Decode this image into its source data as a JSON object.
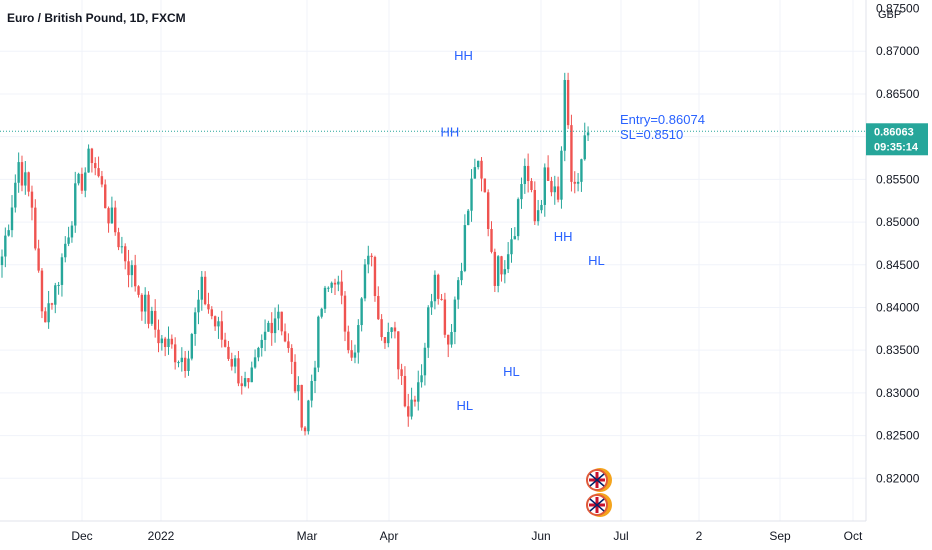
{
  "chart_data": {
    "type": "candlestick",
    "title": "Euro / British Pound, 1D, FXCM",
    "currency": "GBP",
    "colors": {
      "up": "#26a69a",
      "down": "#ef5350",
      "annotation": "#2962ff",
      "last_price": "#26a69a"
    },
    "ylim": [
      0.815,
      0.876
    ],
    "y_ticks": [
      0.82,
      0.825,
      0.83,
      0.835,
      0.84,
      0.845,
      0.85,
      0.855,
      0.86,
      0.865,
      0.87
    ],
    "y_tick_labels": [
      "0.82000",
      "0.82500",
      "0.83000",
      "0.83500",
      "0.84000",
      "0.84500",
      "0.85000",
      "0.85500",
      "0.86000",
      "0.86500",
      "0.87000"
    ],
    "partial_top_tick": "0.87500",
    "x_tick_labels": [
      "Dec",
      "2022",
      "Mar",
      "Apr",
      "Jun",
      "Jul",
      "2",
      "Sep",
      "Oct"
    ],
    "last_price": {
      "value": 0.86063,
      "label": "0.86063",
      "countdown": "09:35:14"
    },
    "candles": {
      "anchors": [
        [
          0,
          0.846
        ],
        [
          5,
          0.857
        ],
        [
          9,
          0.852
        ],
        [
          12,
          0.839
        ],
        [
          16,
          0.842
        ],
        [
          22,
          0.853
        ],
        [
          27,
          0.858
        ],
        [
          32,
          0.851
        ],
        [
          36,
          0.847
        ],
        [
          40,
          0.843
        ],
        [
          44,
          0.839
        ],
        [
          48,
          0.836
        ],
        [
          55,
          0.834
        ],
        [
          60,
          0.842
        ],
        [
          64,
          0.838
        ],
        [
          69,
          0.834
        ],
        [
          74,
          0.83
        ],
        [
          80,
          0.838
        ],
        [
          83,
          0.84
        ],
        [
          88,
          0.831
        ],
        [
          91,
          0.826
        ],
        [
          96,
          0.84
        ],
        [
          100,
          0.844
        ],
        [
          103,
          0.838
        ],
        [
          106,
          0.834
        ],
        [
          110,
          0.847
        ],
        [
          114,
          0.838
        ],
        [
          118,
          0.836
        ],
        [
          122,
          0.828
        ],
        [
          126,
          0.833
        ],
        [
          130,
          0.845
        ],
        [
          134,
          0.836
        ],
        [
          138,
          0.846
        ],
        [
          142,
          0.857
        ],
        [
          145,
          0.853
        ],
        [
          148,
          0.844
        ],
        [
          151,
          0.846
        ],
        [
          154,
          0.85
        ],
        [
          157,
          0.857
        ],
        [
          160,
          0.85
        ],
        [
          163,
          0.855
        ],
        [
          167,
          0.852
        ],
        [
          169,
          0.865
        ],
        [
          171,
          0.855
        ],
        [
          173,
          0.854
        ],
        [
          175,
          0.8587
        ],
        [
          176,
          0.8605
        ]
      ],
      "wick_up": 0.0015,
      "wick_down": 0.0015
    },
    "annotations": [
      {
        "label": "HH",
        "x": 134.5,
        "y": 0.86
      },
      {
        "label": "HH",
        "x": 138.6,
        "y": 0.869
      },
      {
        "label": "HH",
        "x": 168.5,
        "y": 0.8478
      },
      {
        "label": "HL",
        "x": 139.0,
        "y": 0.828
      },
      {
        "label": "HL",
        "x": 153.0,
        "y": 0.832
      },
      {
        "label": "HL",
        "x": 178.5,
        "y": 0.845
      }
    ],
    "entry_note": {
      "line1": "Entry=0.86074",
      "line2": "SL=0.8510"
    }
  }
}
